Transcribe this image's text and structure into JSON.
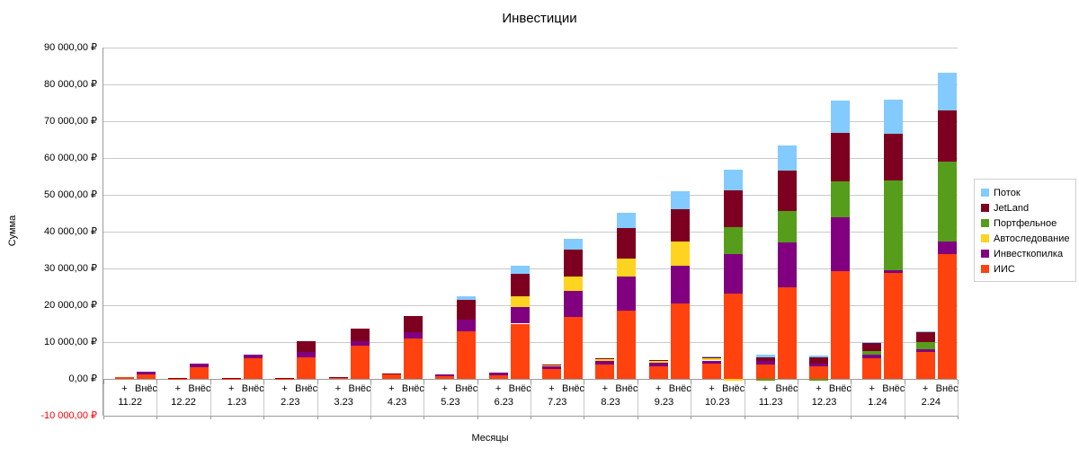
{
  "title": "Инвестиции",
  "y_axis": {
    "title": "Сумма",
    "ticks": [
      {
        "value": 90000,
        "label": "90 000,00 ₽",
        "color": "#000000"
      },
      {
        "value": 80000,
        "label": "80 000,00 ₽",
        "color": "#000000"
      },
      {
        "value": 70000,
        "label": "70 000,00 ₽",
        "color": "#000000"
      },
      {
        "value": 60000,
        "label": "60 000,00 ₽",
        "color": "#000000"
      },
      {
        "value": 50000,
        "label": "50 000,00 ₽",
        "color": "#000000"
      },
      {
        "value": 40000,
        "label": "40 000,00 ₽",
        "color": "#000000"
      },
      {
        "value": 30000,
        "label": "30 000,00 ₽",
        "color": "#000000"
      },
      {
        "value": 20000,
        "label": "20 000,00 ₽",
        "color": "#000000"
      },
      {
        "value": 10000,
        "label": "10 000,00 ₽",
        "color": "#000000"
      },
      {
        "value": 0,
        "label": "0,00 ₽",
        "color": "#000000"
      },
      {
        "value": -10000,
        "label": "-10 000,00 ₽",
        "color": "#ff0000"
      }
    ]
  },
  "x_axis": {
    "title": "Месяцы",
    "bar_labels": {
      "plus": "+",
      "vnes": "Внёс"
    }
  },
  "chart_data": {
    "type": "bar",
    "stacked": true,
    "grid": true,
    "legend_position": "right",
    "title": "Инвестиции",
    "xlabel": "Месяцы",
    "ylabel": "Сумма",
    "ylim": [
      -10000,
      90000
    ],
    "y_step": 10000,
    "categories": [
      "11.22",
      "12.22",
      "1.23",
      "2.23",
      "3.23",
      "4.23",
      "5.23",
      "6.23",
      "7.23",
      "8.23",
      "9.23",
      "10.23",
      "11.23",
      "12.23",
      "1.24",
      "2.24"
    ],
    "bars_per_category": [
      "+",
      "Внёс"
    ],
    "series": [
      {
        "name": "ИИС",
        "color": "#FF420E",
        "plus": [
          500,
          100,
          100,
          100,
          250,
          1200,
          800,
          950,
          2700,
          3800,
          3400,
          4200,
          4000,
          3400,
          5700,
          7200
        ],
        "vnes": [
          1200,
          3100,
          5600,
          5800,
          9000,
          10900,
          13000,
          15000,
          16800,
          18600,
          20400,
          23100,
          24900,
          29200,
          28900,
          33800
        ]
      },
      {
        "name": "Инвесткопилка",
        "color": "#800080",
        "plus": [
          0,
          0,
          0,
          0,
          0,
          0,
          500,
          650,
          600,
          1000,
          1000,
          800,
          900,
          800,
          1000,
          900
        ],
        "vnes": [
          700,
          1000,
          1000,
          1600,
          1200,
          1800,
          3200,
          4600,
          7100,
          9200,
          10400,
          10900,
          12100,
          14600,
          600,
          3400
        ]
      },
      {
        "name": "Автоследование",
        "color": "#FFD320",
        "plus": [
          0,
          0,
          0,
          0,
          0,
          0,
          0,
          0,
          400,
          500,
          500,
          550,
          0,
          0,
          0,
          0
        ],
        "vnes": [
          0,
          0,
          0,
          0,
          0,
          0,
          0,
          2800,
          3800,
          4900,
          6500,
          -500,
          0,
          0,
          0,
          0
        ]
      },
      {
        "name": "Портфельное",
        "color": "#579D1C",
        "plus": [
          0,
          0,
          0,
          0,
          0,
          0,
          0,
          0,
          0,
          0,
          0,
          0,
          -500,
          -500,
          900,
          1900
        ],
        "vnes": [
          0,
          0,
          0,
          0,
          0,
          0,
          0,
          0,
          0,
          0,
          0,
          7100,
          8600,
          9900,
          24500,
          21900
        ]
      },
      {
        "name": "JetLand",
        "color": "#7E0021",
        "plus": [
          0,
          100,
          100,
          100,
          150,
          300,
          0,
          0,
          200,
          300,
          300,
          300,
          1000,
          1550,
          2100,
          2600
        ],
        "vnes": [
          0,
          0,
          0,
          2850,
          3500,
          4300,
          5300,
          6100,
          7500,
          8200,
          8900,
          10100,
          10900,
          13100,
          12700,
          13900
        ]
      },
      {
        "name": "Поток",
        "color": "#83CAFF",
        "plus": [
          0,
          0,
          0,
          0,
          0,
          0,
          0,
          0,
          0,
          0,
          0,
          300,
          600,
          500,
          400,
          300
        ],
        "vnes": [
          0,
          0,
          0,
          0,
          0,
          0,
          950,
          2300,
          2900,
          4200,
          4800,
          5700,
          6900,
          8800,
          9200,
          10200
        ]
      }
    ]
  }
}
